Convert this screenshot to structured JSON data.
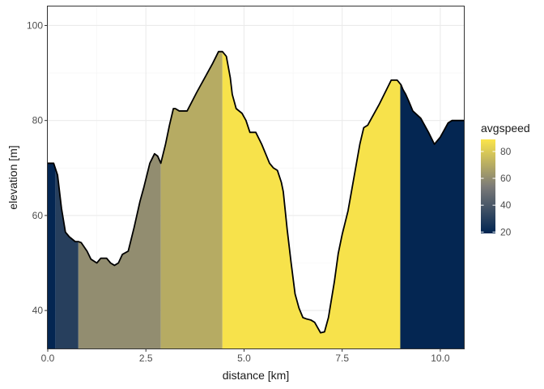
{
  "chart_data": {
    "type": "area",
    "xlabel": "distance [km]",
    "ylabel": "elevation [m]",
    "xlim": [
      0,
      10.6
    ],
    "ylim": [
      32,
      104
    ],
    "x_ticks": [
      0,
      2.5,
      5,
      7.5,
      10
    ],
    "x_tick_labels": [
      "0.0",
      "2.5",
      "5.0",
      "7.5",
      "10.0"
    ],
    "y_ticks": [
      40,
      60,
      80,
      100
    ],
    "y_tick_labels": [
      "40",
      "60",
      "80",
      "100"
    ],
    "grid": true,
    "theme": "bw",
    "profile": {
      "x": [
        0.0,
        0.15,
        0.25,
        0.35,
        0.45,
        0.55,
        0.7,
        0.78,
        0.85,
        1.0,
        1.1,
        1.25,
        1.35,
        1.5,
        1.6,
        1.7,
        1.8,
        1.9,
        2.05,
        2.2,
        2.35,
        2.45,
        2.6,
        2.72,
        2.8,
        2.88,
        3.0,
        3.1,
        3.2,
        3.25,
        3.35,
        3.55,
        3.8,
        4.0,
        4.2,
        4.35,
        4.45,
        4.55,
        4.65,
        4.7,
        4.8,
        4.95,
        5.05,
        5.15,
        5.3,
        5.45,
        5.55,
        5.65,
        5.75,
        5.85,
        5.95,
        6.0,
        6.1,
        6.2,
        6.3,
        6.4,
        6.5,
        6.6,
        6.7,
        6.8,
        6.95,
        7.05,
        7.15,
        7.3,
        7.4,
        7.5,
        7.65,
        7.8,
        7.95,
        8.05,
        8.15,
        8.25,
        8.35,
        8.45,
        8.6,
        8.75,
        8.9,
        9.0,
        9.05,
        9.12,
        9.2,
        9.3,
        9.5,
        9.7,
        9.85,
        10.0,
        10.1,
        10.2,
        10.3,
        10.45,
        10.6
      ],
      "y": [
        71.0,
        71.0,
        68.5,
        61.5,
        56.5,
        55.5,
        54.5,
        54.5,
        54.3,
        52.5,
        50.8,
        50.0,
        51.0,
        51.0,
        50.0,
        49.5,
        50.0,
        51.8,
        52.5,
        57.5,
        63.0,
        66.0,
        71.0,
        73.0,
        72.5,
        71.0,
        75.0,
        79.0,
        82.5,
        82.5,
        82.0,
        82.0,
        86.0,
        89.0,
        92.0,
        94.5,
        94.5,
        93.5,
        89.0,
        85.5,
        82.5,
        81.5,
        80.0,
        77.5,
        77.5,
        75.0,
        73.0,
        71.0,
        70.0,
        69.5,
        67.0,
        65.0,
        57.0,
        50.0,
        43.5,
        40.5,
        38.5,
        38.2,
        38.0,
        37.5,
        35.3,
        35.5,
        38.5,
        46.0,
        52.0,
        56.0,
        61.0,
        68.0,
        75.0,
        78.5,
        79.0,
        80.5,
        82.0,
        83.5,
        86.0,
        88.5,
        88.5,
        87.5,
        86.5,
        85.5,
        84.0,
        82.0,
        80.5,
        77.5,
        75.0,
        76.5,
        78.0,
        79.5,
        80.0,
        80.0,
        80.0
      ]
    },
    "segments": [
      {
        "x_start": 0.0,
        "x_end": 0.2,
        "avgspeed": 20
      },
      {
        "x_start": 0.2,
        "x_end": 0.78,
        "avgspeed": 30
      },
      {
        "x_start": 0.78,
        "x_end": 2.88,
        "avgspeed": 60
      },
      {
        "x_start": 2.88,
        "x_end": 4.45,
        "avgspeed": 70
      },
      {
        "x_start": 4.45,
        "x_end": 8.98,
        "avgspeed": 88
      },
      {
        "x_start": 8.98,
        "x_end": 10.6,
        "avgspeed": 20
      }
    ],
    "legend": {
      "title": "avgspeed",
      "position": "right",
      "range": [
        19,
        89
      ],
      "breaks": [
        20,
        40,
        60,
        80
      ],
      "break_labels": [
        "20",
        "40",
        "60",
        "80"
      ]
    },
    "colors": {
      "scale_low": "#002451",
      "scale_mid": "#7c7b78",
      "scale_high": "#fbe54a",
      "line": "#000000",
      "panel_border": "#333333",
      "grid_major": "#ebebeb",
      "grid_minor": "#f5f5f5"
    }
  }
}
